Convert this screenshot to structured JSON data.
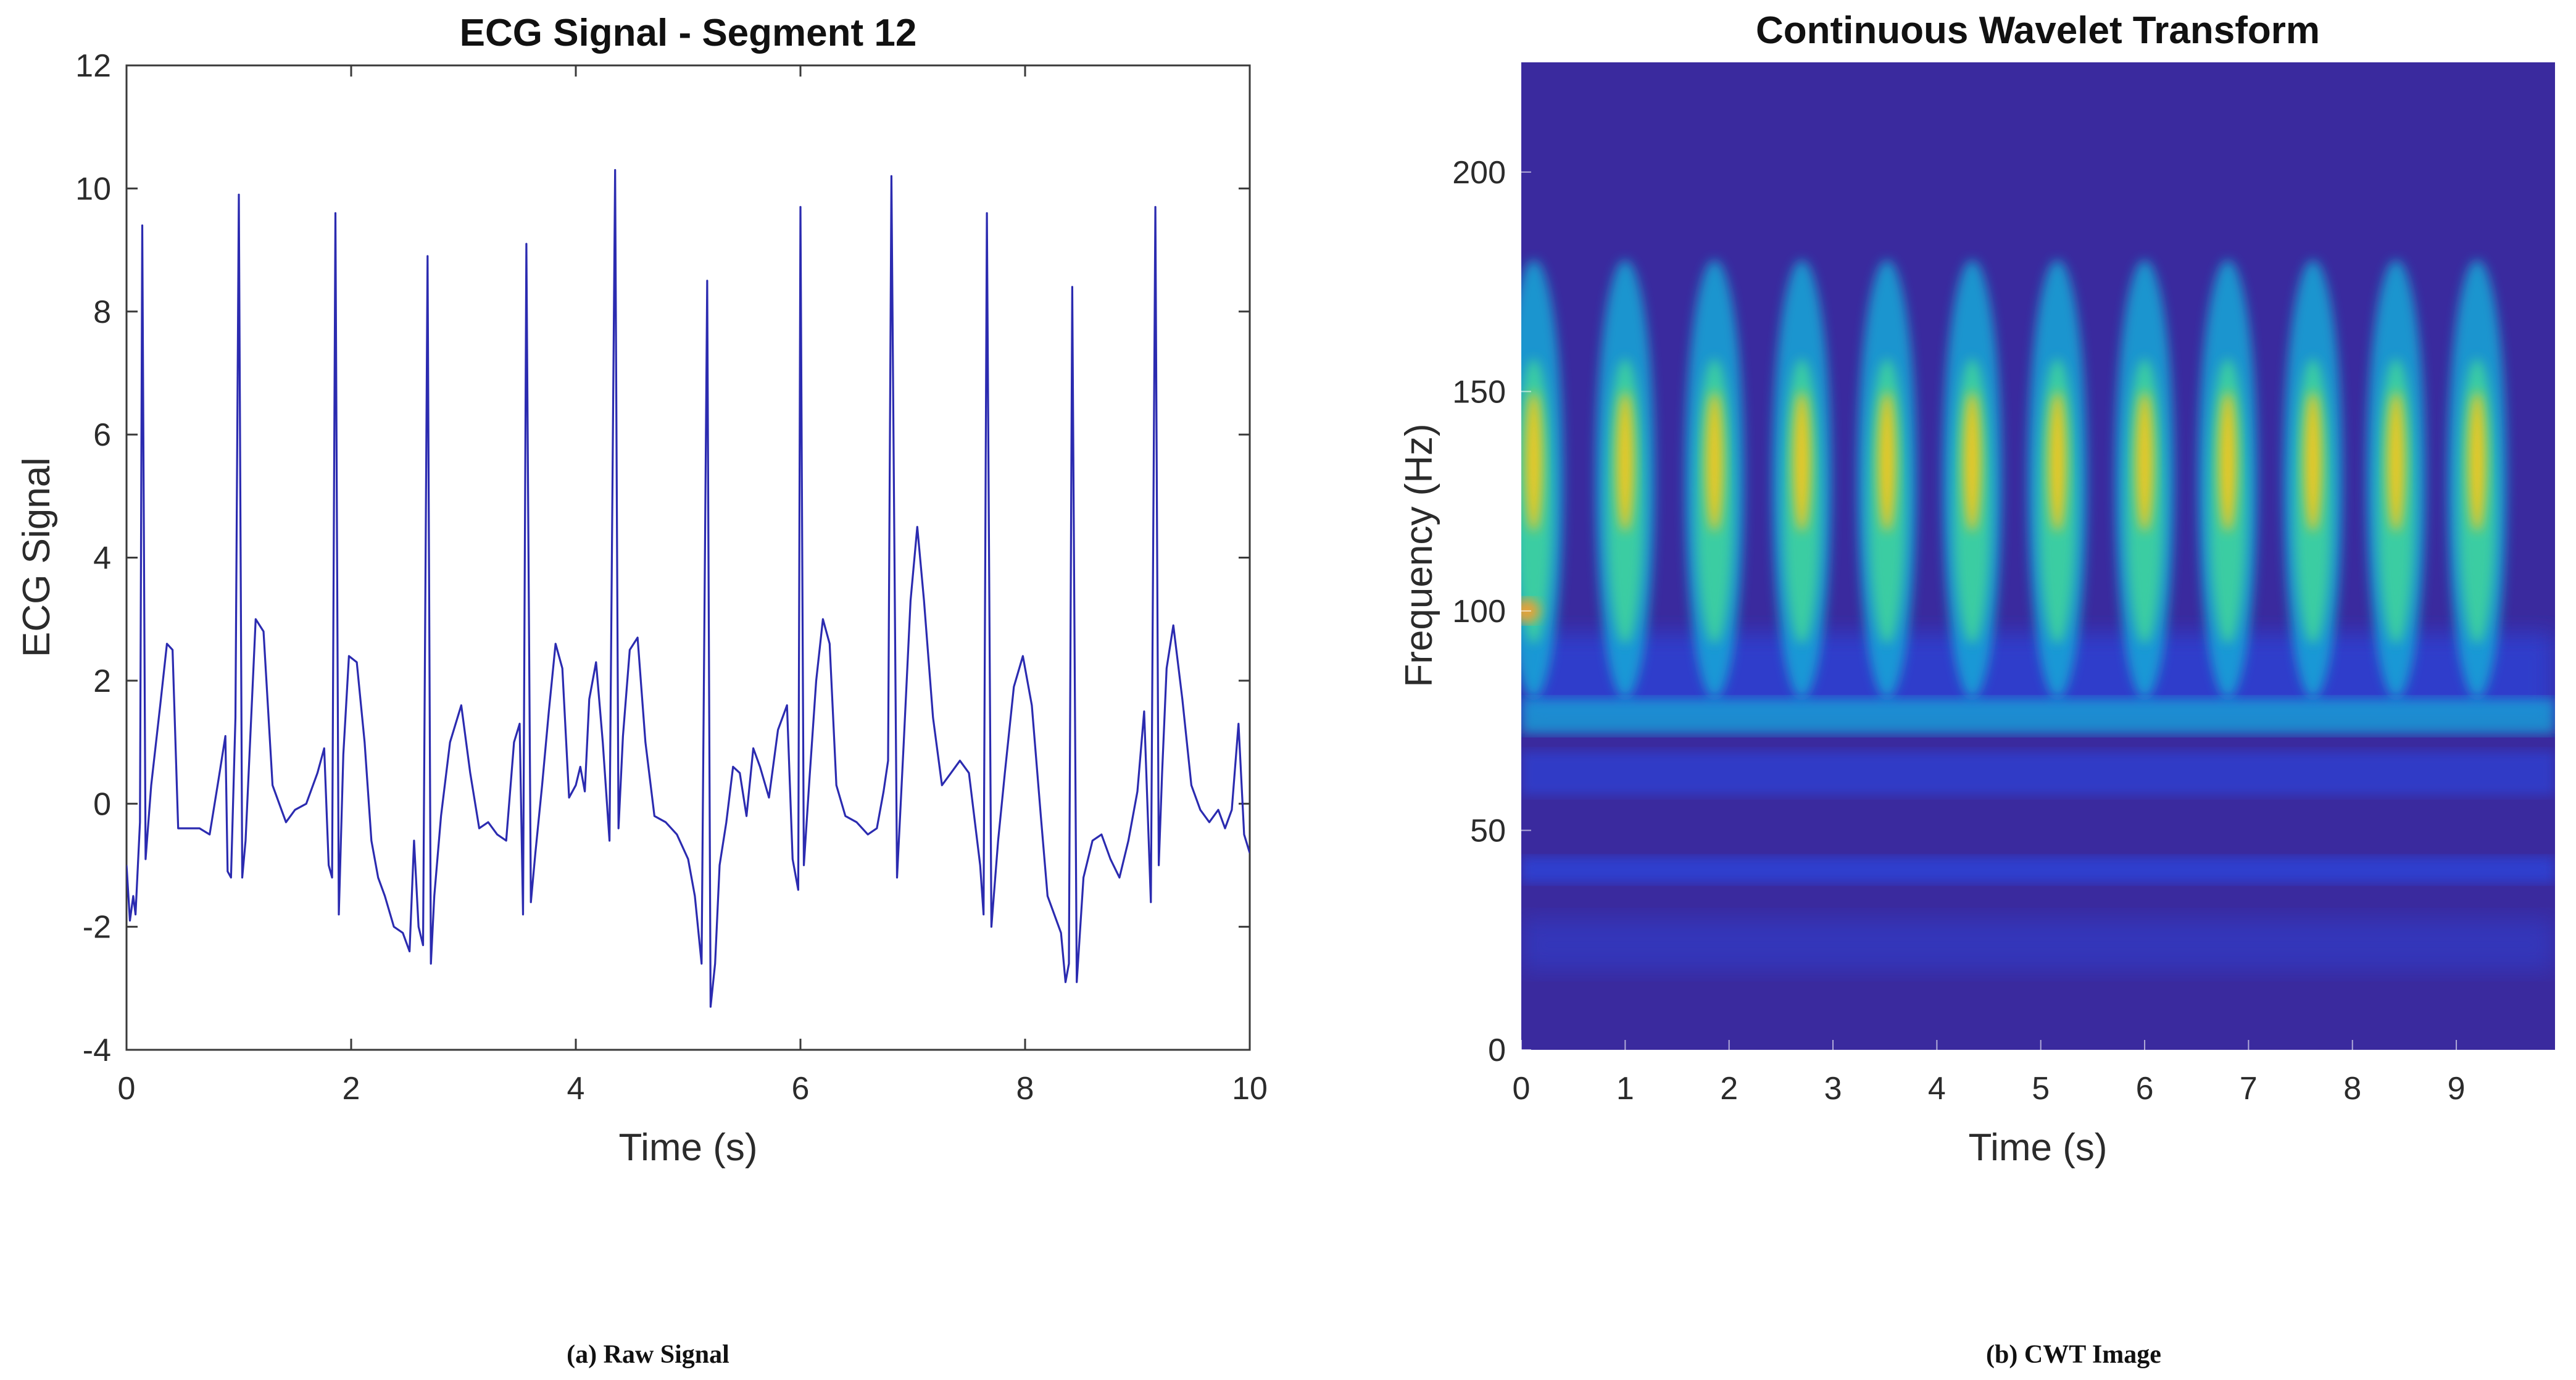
{
  "figure": {
    "caption_a": "(a) Raw Signal",
    "caption_b": "(b) CWT Image"
  },
  "chart_data": [
    {
      "type": "line",
      "title": "ECG Signal - Segment 12",
      "xlabel": "Time (s)",
      "ylabel": "ECG Signal",
      "xlim": [
        0,
        10
      ],
      "ylim": [
        -4,
        12
      ],
      "xticks": [
        0,
        2,
        4,
        6,
        8,
        10
      ],
      "yticks": [
        -4,
        -2,
        0,
        2,
        4,
        6,
        8,
        10,
        12
      ],
      "grid": false,
      "line_color": "#2b2bb0",
      "series": [
        {
          "x": [
            0,
            0.03,
            0.06,
            0.08,
            0.12,
            0.14,
            0.17,
            0.22,
            0.3,
            0.36,
            0.41,
            0.46,
            0.52,
            0.58,
            0.65,
            0.74,
            0.82,
            0.88,
            0.9,
            0.93,
            0.97,
            1.0,
            1.03,
            1.06,
            1.1,
            1.15,
            1.22,
            1.3,
            1.36,
            1.42,
            1.5,
            1.6,
            1.7,
            1.76,
            1.8,
            1.83,
            1.86,
            1.89,
            1.93,
            1.98,
            2.05,
            2.12,
            2.18,
            2.24,
            2.3,
            2.38,
            2.46,
            2.52,
            2.56,
            2.6,
            2.64,
            2.68,
            2.71,
            2.74,
            2.8,
            2.88,
            2.98,
            3.06,
            3.14,
            3.22,
            3.3,
            3.38,
            3.45,
            3.5,
            3.53,
            3.56,
            3.6,
            3.64,
            3.7,
            3.76,
            3.82,
            3.88,
            3.94,
            4.0,
            4.04,
            4.08,
            4.12,
            4.18,
            4.24,
            4.3,
            4.35,
            4.38,
            4.42,
            4.48,
            4.55,
            4.62,
            4.7,
            4.8,
            4.9,
            5.0,
            5.06,
            5.12,
            5.17,
            5.2,
            5.24,
            5.28,
            5.34,
            5.4,
            5.46,
            5.52,
            5.58,
            5.64,
            5.72,
            5.8,
            5.88,
            5.93,
            5.98,
            6.0,
            6.03,
            6.08,
            6.14,
            6.2,
            6.26,
            6.32,
            6.4,
            6.5,
            6.6,
            6.68,
            6.74,
            6.78,
            6.81,
            6.86,
            6.92,
            6.98,
            7.04,
            7.1,
            7.18,
            7.26,
            7.34,
            7.42,
            7.5,
            7.56,
            7.6,
            7.63,
            7.66,
            7.7,
            7.76,
            7.82,
            7.9,
            7.98,
            8.06,
            8.14,
            8.2,
            8.26,
            8.32,
            8.36,
            8.39,
            8.42,
            8.46,
            8.52,
            8.6,
            8.68,
            8.76,
            8.84,
            8.92,
            9.0,
            9.06,
            9.12,
            9.16,
            9.19,
            9.22,
            9.26,
            9.32,
            9.4,
            9.48,
            9.56,
            9.64,
            9.72,
            9.78,
            9.84,
            9.9,
            9.95,
            10.0
          ],
          "y": [
            -1.0,
            -1.9,
            -1.5,
            -1.8,
            -0.3,
            9.4,
            -0.9,
            0.3,
            1.6,
            2.6,
            2.5,
            -0.4,
            -0.4,
            -0.4,
            -0.4,
            -0.5,
            0.4,
            1.1,
            -1.1,
            -1.2,
            1.4,
            9.9,
            -1.2,
            -0.6,
            1.0,
            3.0,
            2.8,
            0.3,
            0.0,
            -0.3,
            -0.1,
            0.0,
            0.5,
            0.9,
            -1.0,
            -1.2,
            9.6,
            -1.8,
            0.8,
            2.4,
            2.3,
            1.0,
            -0.6,
            -1.2,
            -1.5,
            -2.0,
            -2.1,
            -2.4,
            -0.6,
            -2.0,
            -2.3,
            8.9,
            -2.6,
            -1.5,
            -0.2,
            1.0,
            1.6,
            0.5,
            -0.4,
            -0.3,
            -0.5,
            -0.6,
            1.0,
            1.3,
            -1.8,
            9.1,
            -1.6,
            -0.8,
            0.3,
            1.5,
            2.6,
            2.2,
            0.1,
            0.3,
            0.6,
            0.2,
            1.7,
            2.3,
            1.0,
            -0.6,
            10.3,
            -0.4,
            1.1,
            2.5,
            2.7,
            1.0,
            -0.2,
            -0.3,
            -0.5,
            -0.9,
            -1.5,
            -2.6,
            8.5,
            -3.3,
            -2.6,
            -1.0,
            -0.3,
            0.6,
            0.5,
            -0.2,
            0.9,
            0.6,
            0.1,
            1.2,
            1.6,
            -0.9,
            -1.4,
            9.7,
            -1.0,
            0.4,
            2.0,
            3.0,
            2.6,
            0.3,
            -0.2,
            -0.3,
            -0.5,
            -0.4,
            0.2,
            0.7,
            10.2,
            -1.2,
            1.0,
            3.3,
            4.5,
            3.3,
            1.4,
            0.3,
            0.5,
            0.7,
            0.5,
            -0.4,
            -1.0,
            -1.8,
            9.6,
            -2.0,
            -0.6,
            0.5,
            1.9,
            2.4,
            1.6,
            -0.2,
            -1.5,
            -1.8,
            -2.1,
            -2.9,
            -2.6,
            8.4,
            -2.9,
            -1.2,
            -0.6,
            -0.5,
            -0.9,
            -1.2,
            -0.6,
            0.2,
            1.5,
            -1.6,
            9.7,
            -1.0,
            0.5,
            2.2,
            2.9,
            1.7,
            0.3,
            -0.1,
            -0.3,
            -0.1,
            -0.4,
            -0.1,
            1.3,
            -0.5,
            -0.8
          ]
        }
      ]
    },
    {
      "type": "heatmap",
      "title": "Continuous Wavelet Transform",
      "xlabel": "Time (s)",
      "ylabel": "Frequency (Hz)",
      "xlim": [
        0,
        9.95
      ],
      "ylim": [
        0,
        225
      ],
      "xticks": [
        0,
        1,
        2,
        3,
        4,
        5,
        6,
        7,
        8,
        9
      ],
      "yticks": [
        0,
        50,
        100,
        150,
        200
      ],
      "colormap": "parula",
      "colors": {
        "background": "#3a2a9e",
        "low": "#2f3fd0",
        "mid": "#16a8d8",
        "high": "#3ed0a0",
        "peak": "#f2c81c"
      },
      "beat_times": [
        0.12,
        1.0,
        1.86,
        2.7,
        3.52,
        4.34,
        5.16,
        6.0,
        6.8,
        7.62,
        8.42,
        9.2
      ],
      "peak_band_hz": [
        118,
        150
      ],
      "energy_band_hz": [
        75,
        175
      ],
      "hotspot": {
        "time": 0.05,
        "frequency": 100
      }
    }
  ]
}
